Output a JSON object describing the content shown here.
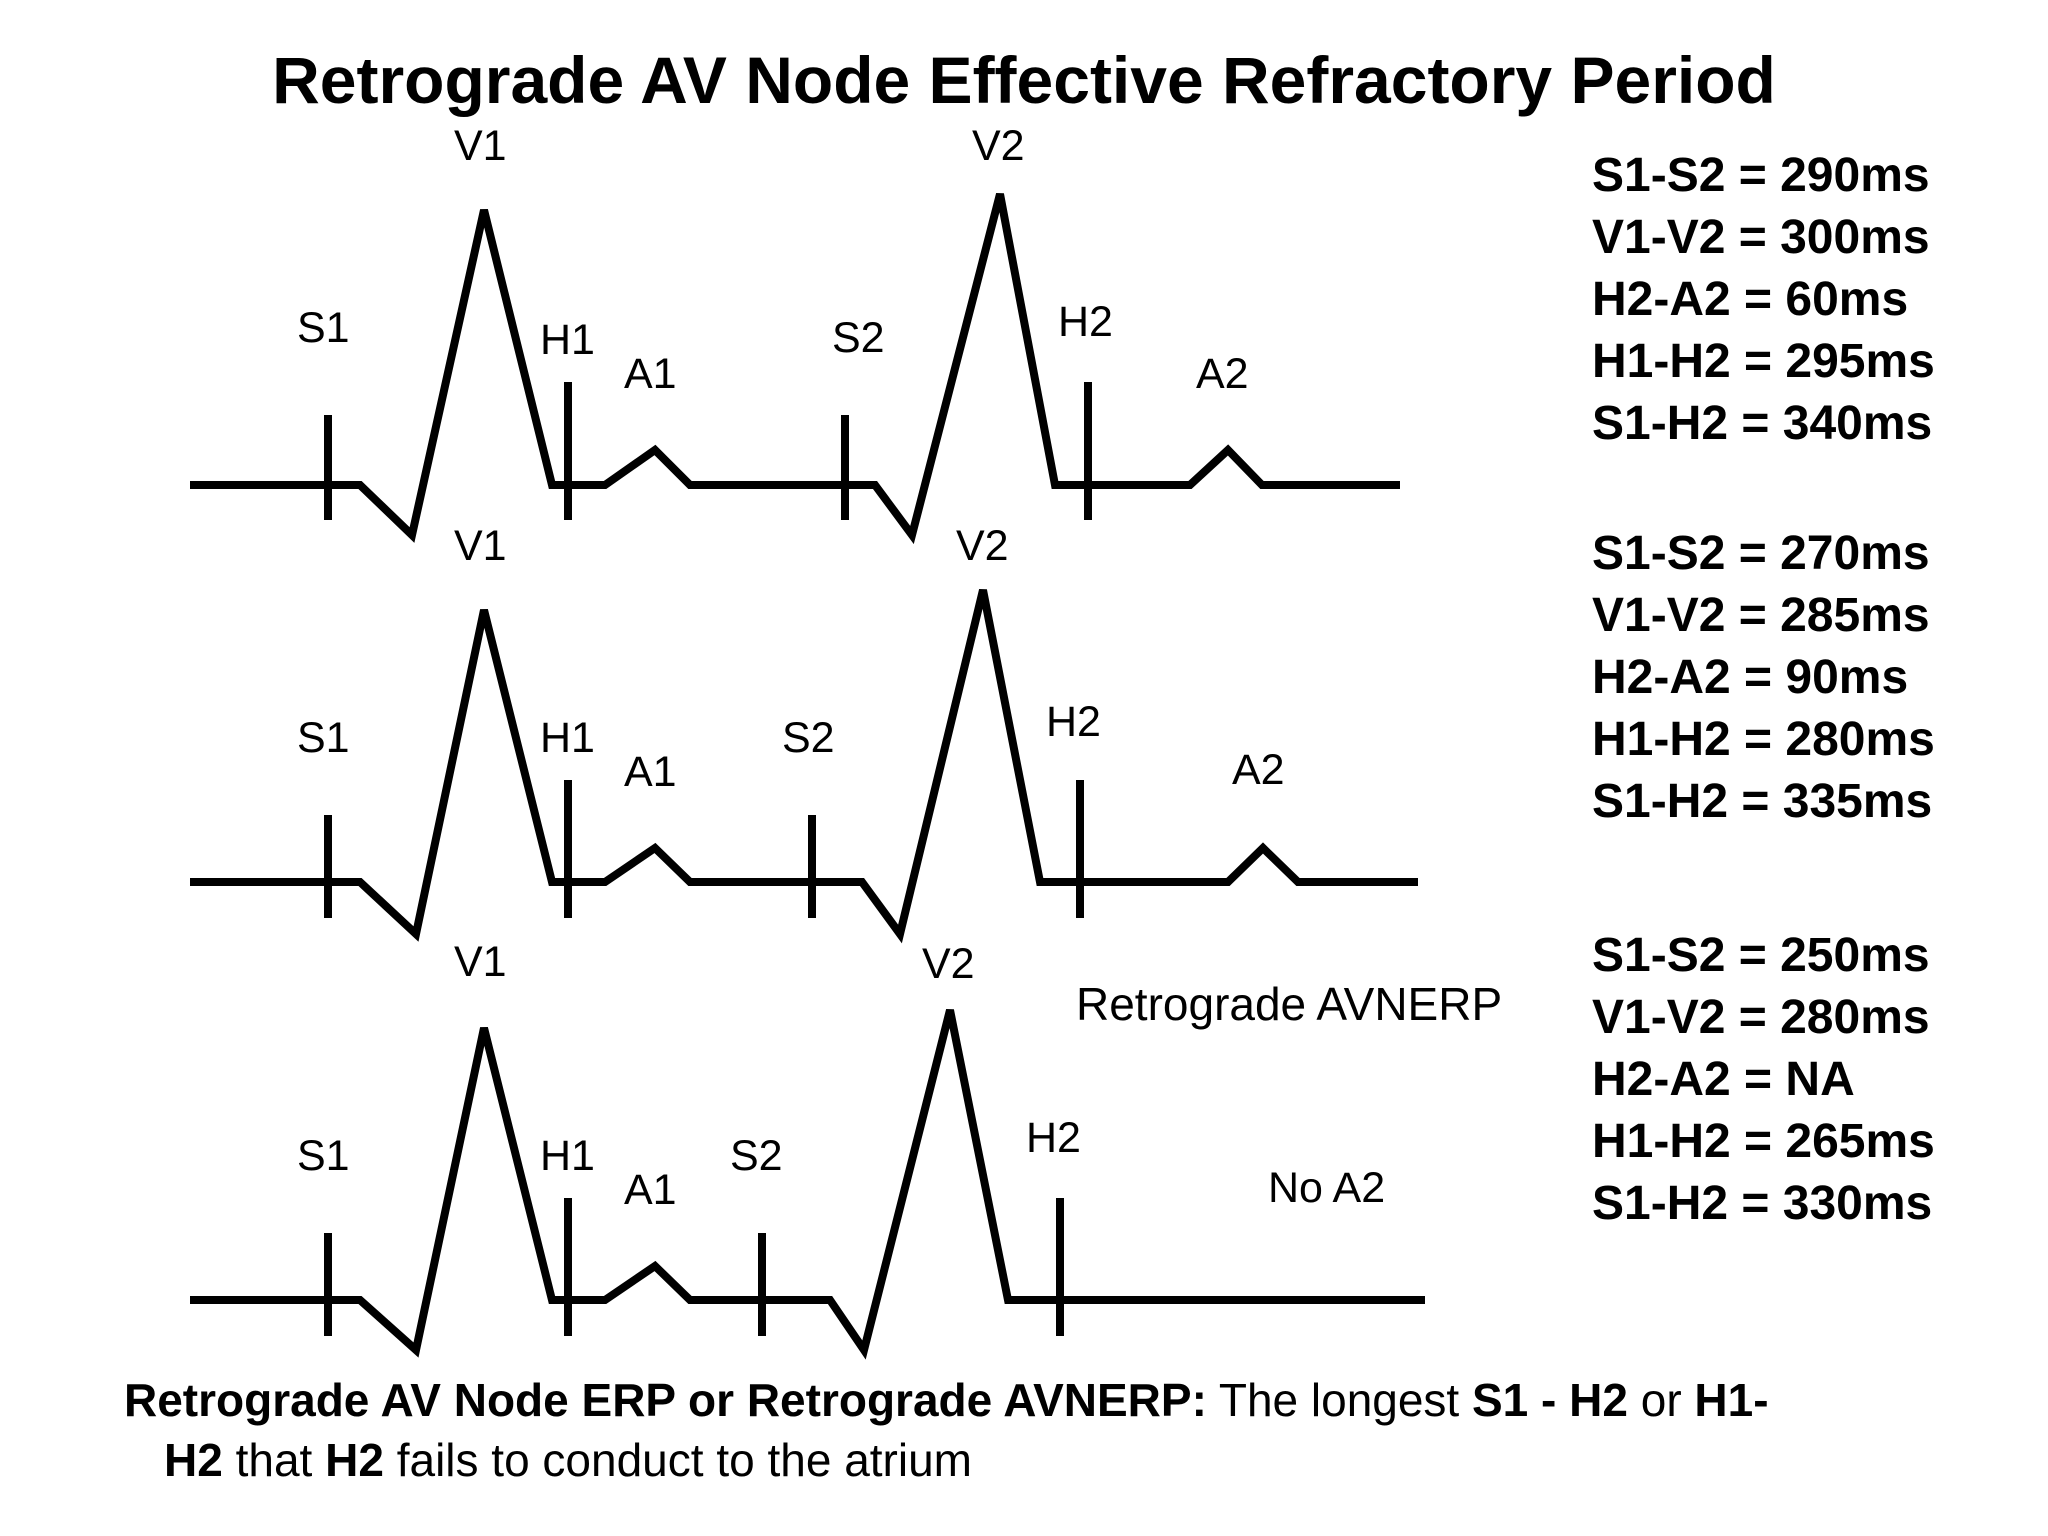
{
  "title": "Retrograde AV Node Effective Refractory Period",
  "traces": [
    {
      "labels": {
        "s1": "S1",
        "v1": "V1",
        "h1": "H1",
        "a1": "A1",
        "s2": "S2",
        "v2": "V2",
        "h2": "H2",
        "a2": "A2"
      },
      "measurements": [
        "S1-S2 = 290ms",
        "V1-V2 = 300ms",
        "H2-A2 = 60ms",
        "H1-H2 = 295ms",
        "S1-H2 = 340ms"
      ]
    },
    {
      "labels": {
        "s1": "S1",
        "v1": "V1",
        "h1": "H1",
        "a1": "A1",
        "s2": "S2",
        "v2": "V2",
        "h2": "H2",
        "a2": "A2"
      },
      "measurements": [
        "S1-S2 = 270ms",
        "V1-V2 = 285ms",
        "H2-A2 = 90ms",
        "H1-H2 = 280ms",
        "S1-H2 = 335ms"
      ]
    },
    {
      "labels": {
        "s1": "S1",
        "v1": "V1",
        "h1": "H1",
        "a1": "A1",
        "s2": "S2",
        "v2": "V2",
        "h2": "H2",
        "a2": "No A2"
      },
      "measurements": [
        "S1-S2 = 250ms",
        "V1-V2 = 280ms",
        "H2-A2 = NA",
        "H1-H2 = 265ms",
        "S1-H2 = 330ms"
      ]
    }
  ],
  "annotation": "Retrograde AVNERP",
  "definition": {
    "term": "Retrograde AV Node ERP or Retrograde AVNERP:",
    "text_1": " The longest ",
    "bold_1": "S1 - H2",
    "text_2": " or ",
    "bold_2": "H1-",
    "bold_3": "H2",
    "text_3": " that ",
    "bold_4": "H2",
    "text_4": " fails to conduct to the atrium"
  }
}
